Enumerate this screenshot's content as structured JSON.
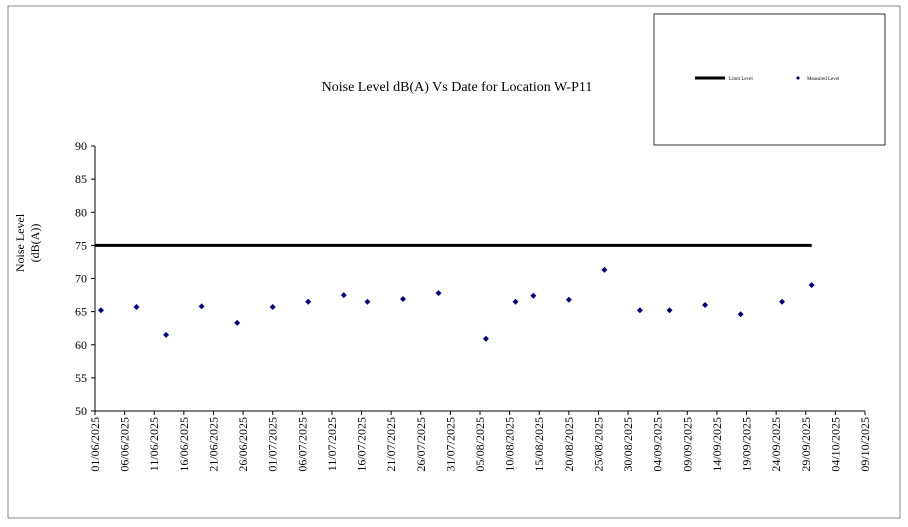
{
  "chart_data": {
    "type": "scatter",
    "title": "Noise Level dB(A) Vs Date for Location W-P11",
    "ylabel": [
      "Noise Level",
      "(dB(A))"
    ],
    "xlim": [
      "01/06/2025",
      "09/10/2025"
    ],
    "xticks": [
      "01/06/2025",
      "06/06/2025",
      "11/06/2025",
      "16/06/2025",
      "21/06/2025",
      "26/06/2025",
      "01/07/2025",
      "06/07/2025",
      "11/07/2025",
      "16/07/2025",
      "21/07/2025",
      "26/07/2025",
      "31/07/2025",
      "05/08/2025",
      "10/08/2025",
      "15/08/2025",
      "20/08/2025",
      "25/08/2025",
      "30/08/2025",
      "04/09/2025",
      "09/09/2025",
      "14/09/2025",
      "19/09/2025",
      "24/09/2025",
      "29/09/2025",
      "04/10/2025",
      "09/10/2025"
    ],
    "ylim": [
      50,
      90
    ],
    "yticks": [
      50,
      55,
      60,
      65,
      70,
      75,
      80,
      85,
      90
    ],
    "series": [
      {
        "name": "Limit Level",
        "color": "#000000",
        "style": "line",
        "x": [
          "01/06/2025",
          "30/09/2025"
        ],
        "values": [
          75,
          75
        ]
      },
      {
        "name": "Measured Level",
        "color": "#000080",
        "style": "marker",
        "x": [
          "02/06/2025",
          "08/06/2025",
          "13/06/2025",
          "19/06/2025",
          "25/06/2025",
          "01/07/2025",
          "07/07/2025",
          "13/07/2025",
          "17/07/2025",
          "23/07/2025",
          "29/07/2025",
          "06/08/2025",
          "11/08/2025",
          "14/08/2025",
          "20/08/2025",
          "26/08/2025",
          "01/09/2025",
          "06/09/2025",
          "12/09/2025",
          "18/09/2025",
          "25/09/2025",
          "30/09/2025"
        ],
        "values": [
          65.2,
          65.7,
          61.5,
          65.8,
          63.3,
          65.7,
          66.5,
          67.5,
          66.5,
          66.9,
          67.8,
          60.9,
          66.5,
          67.4,
          66.8,
          71.3,
          65.2,
          65.2,
          66,
          64.6,
          66.5,
          69
        ]
      }
    ]
  }
}
